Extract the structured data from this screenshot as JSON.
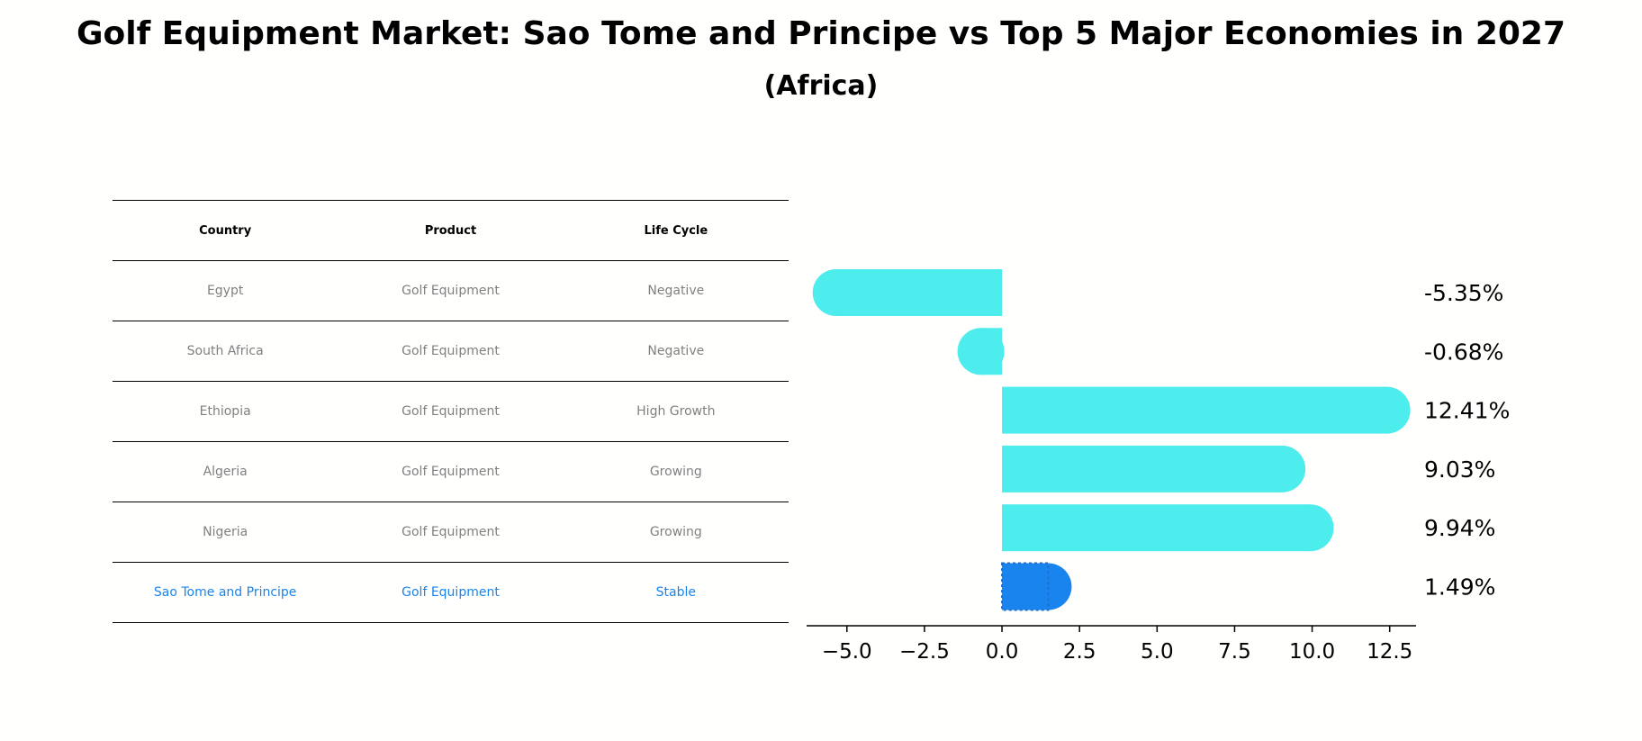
{
  "title": "Golf Equipment Market: Sao Tome and Principe vs Top 5 Major Economies in 2027",
  "subtitle": "(Africa)",
  "table": {
    "headers": [
      "Country",
      "Product",
      "Life Cycle"
    ],
    "rows": [
      {
        "country": "Egypt",
        "product": "Golf Equipment",
        "lifecycle": "Negative"
      },
      {
        "country": "South Africa",
        "product": "Golf Equipment",
        "lifecycle": "Negative"
      },
      {
        "country": "Ethiopia",
        "product": "Golf Equipment",
        "lifecycle": "High Growth"
      },
      {
        "country": "Algeria",
        "product": "Golf Equipment",
        "lifecycle": "Growing"
      },
      {
        "country": "Nigeria",
        "product": "Golf Equipment",
        "lifecycle": "Growing"
      },
      {
        "country": "Sao Tome and Principe",
        "product": "Golf Equipment",
        "lifecycle": "Stable"
      }
    ]
  },
  "chart_data": {
    "type": "bar",
    "orientation": "horizontal",
    "categories": [
      "Egypt",
      "South Africa",
      "Ethiopia",
      "Algeria",
      "Nigeria",
      "Sao Tome and Principe"
    ],
    "values": [
      -5.35,
      -0.68,
      12.41,
      9.03,
      9.94,
      1.49
    ],
    "value_labels": [
      "-5.35%",
      "-0.68%",
      "12.41%",
      "9.03%",
      "9.94%",
      "1.49%"
    ],
    "xlim": [
      -6.3,
      13.35
    ],
    "xticks": [
      -5.0,
      -2.5,
      0.0,
      2.5,
      5.0,
      7.5,
      10.0,
      12.5
    ],
    "xtick_labels": [
      "−5.0",
      "−2.5",
      "0.0",
      "2.5",
      "5.0",
      "7.5",
      "10.0",
      "12.5"
    ],
    "highlight_index": 5,
    "colors": {
      "default": "#4deced",
      "highlight": "#1a84ee"
    },
    "grid": false
  }
}
